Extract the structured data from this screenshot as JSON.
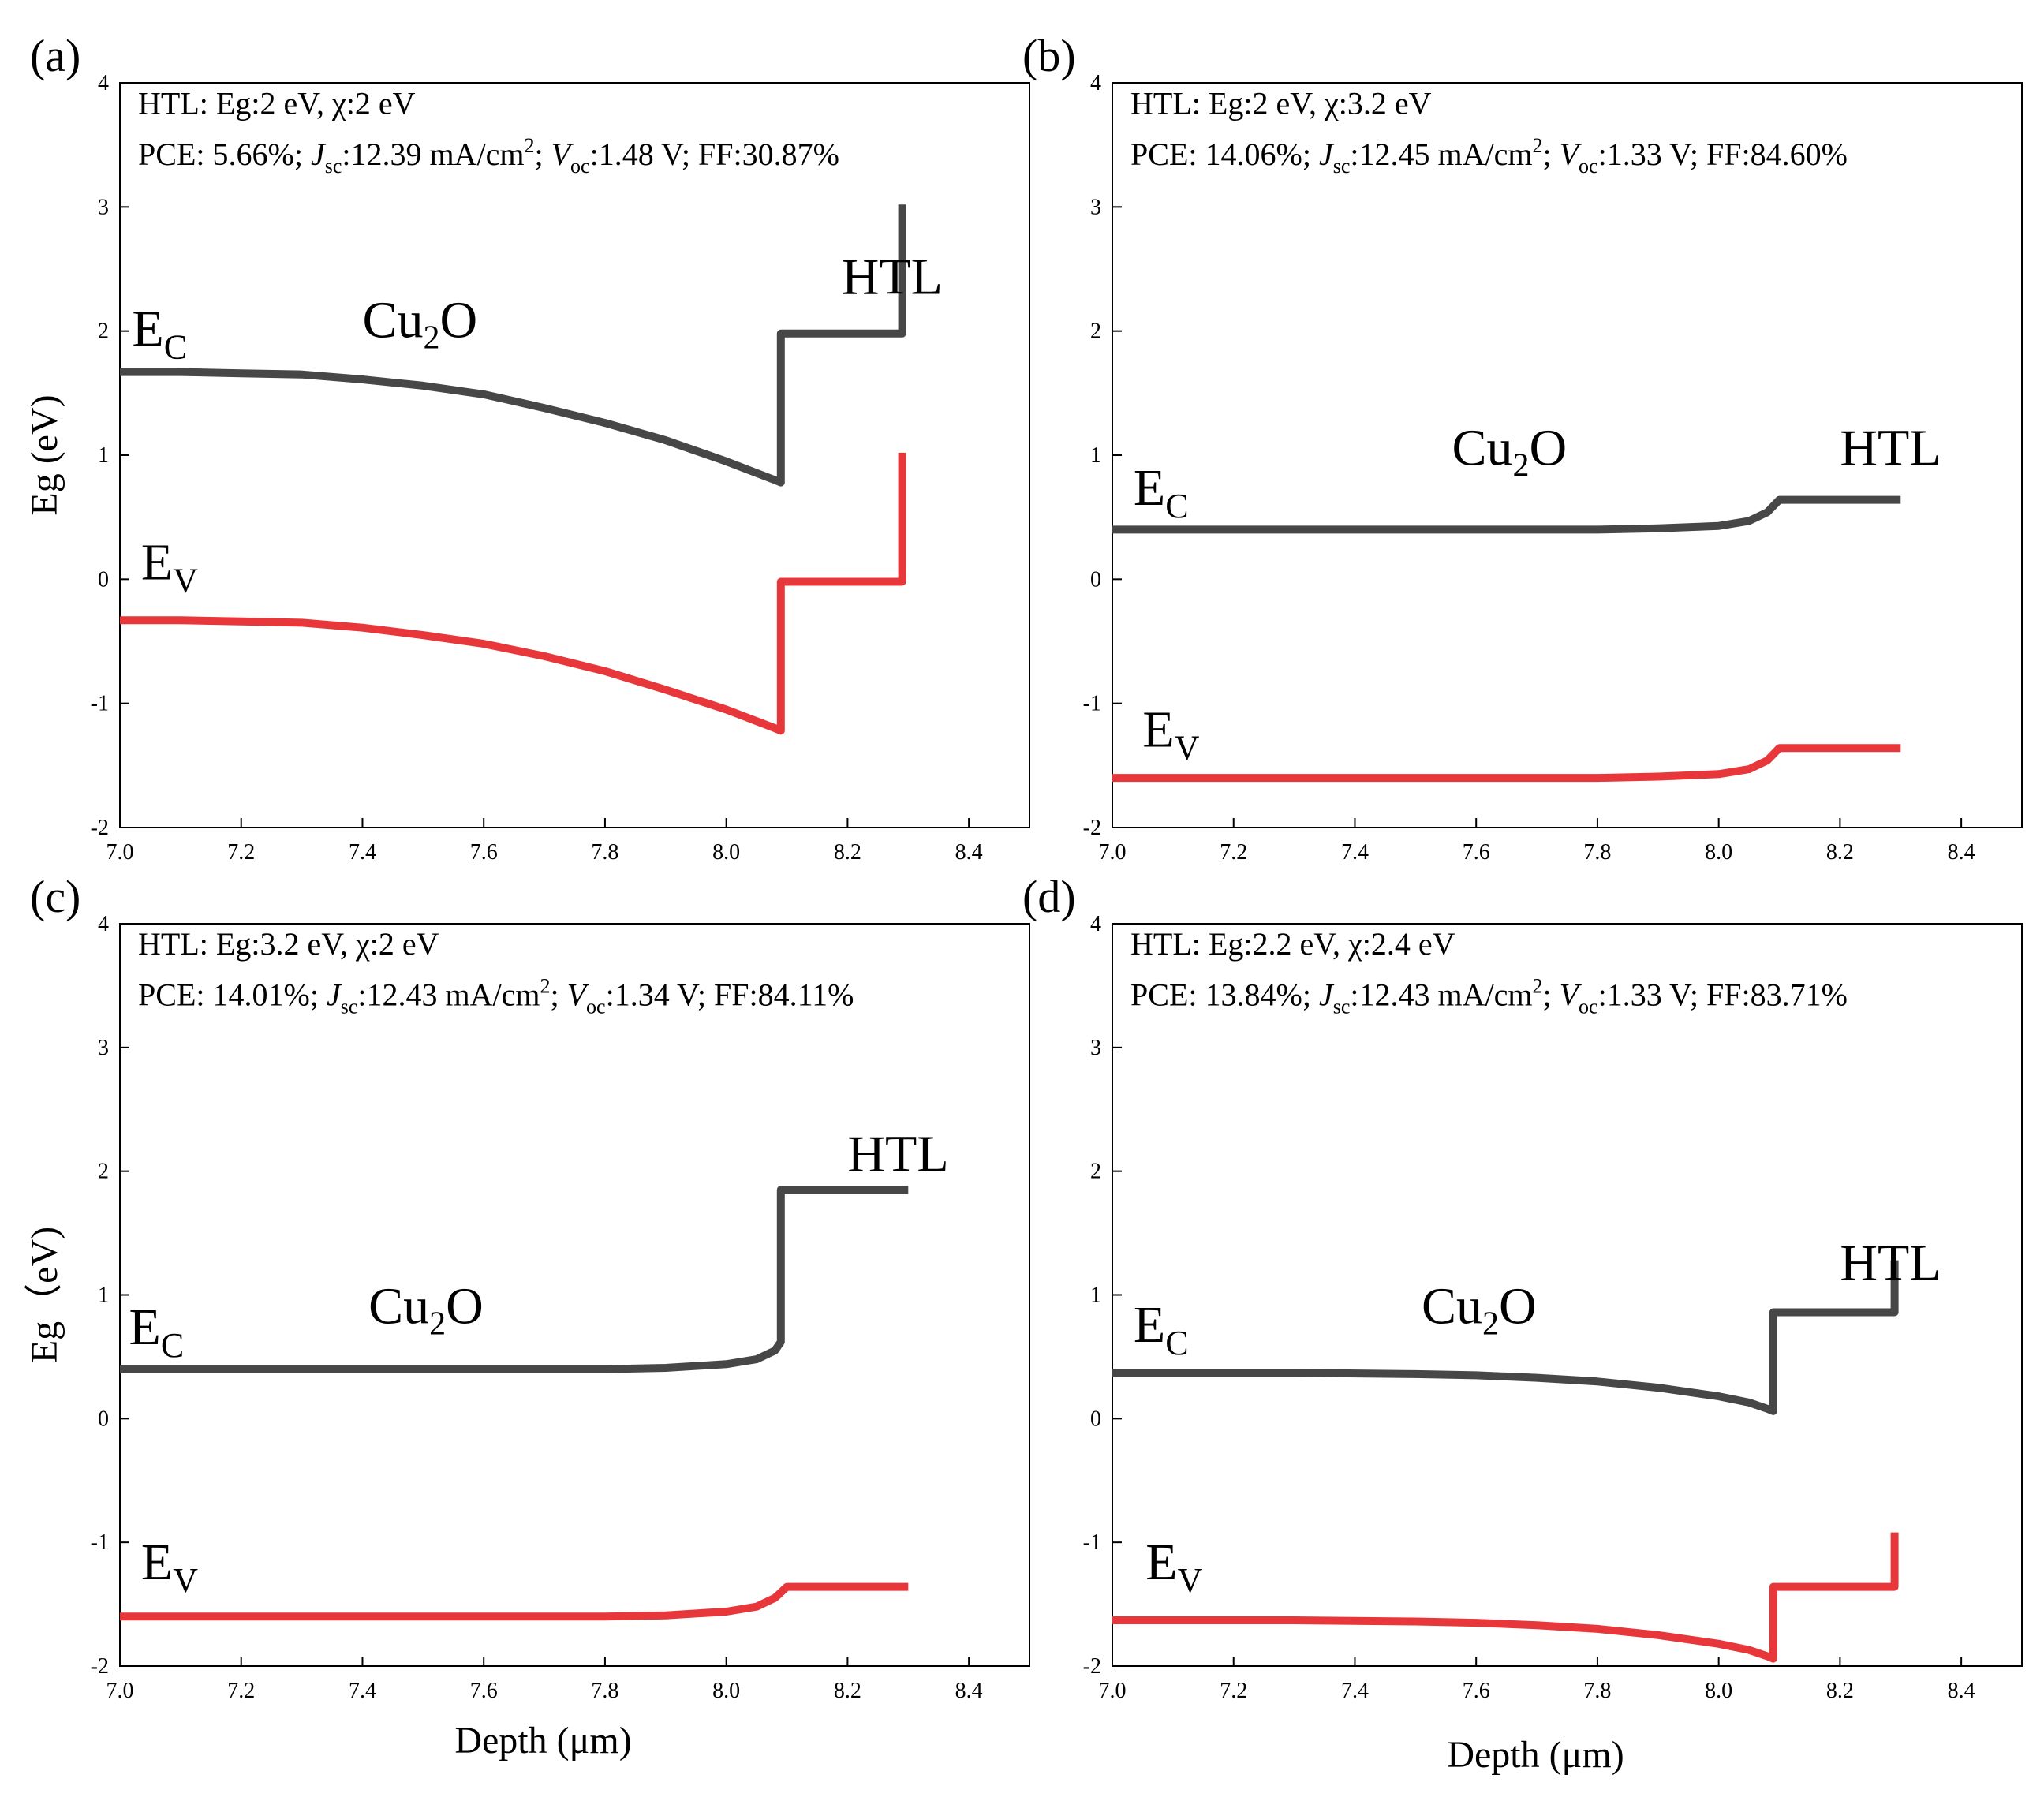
{
  "figure": {
    "panels": [
      {
        "id": "a",
        "label": "(a)",
        "info_line1": "HTL: Eg:2 eV, χ:2 eV",
        "info_line2": {
          "pce": "PCE: 5.66%; ",
          "jsc_sym": "J",
          "jsc_sub": "sc",
          "jsc_val": ":12.39 mA/cm",
          "jsc_sup": "2",
          "voc_pre": "; ",
          "voc_sym": "V",
          "voc_sub": "oc",
          "voc_val": ":1.48 V; FF:30.87%"
        },
        "ylabel": "Eg (eV)",
        "xlabel": "",
        "region_cu2o": {
          "main": "Cu",
          "sub": "2",
          "tail": "O"
        },
        "region_htl": "HTL",
        "ec_label": {
          "main": "E",
          "sub": "C"
        },
        "ev_label": {
          "main": "E",
          "sub": "V"
        }
      },
      {
        "id": "b",
        "label": "(b)",
        "info_line1": "HTL: Eg:2 eV, χ:3.2 eV",
        "info_line2": {
          "pce": "PCE: 14.06%; ",
          "jsc_sym": "J",
          "jsc_sub": "sc",
          "jsc_val": ":12.45 mA/cm",
          "jsc_sup": "2",
          "voc_pre": "; ",
          "voc_sym": "V",
          "voc_sub": "oc",
          "voc_val": ":1.33 V; FF:84.60%"
        },
        "ylabel": "",
        "xlabel": "",
        "region_cu2o": {
          "main": "Cu",
          "sub": "2",
          "tail": "O"
        },
        "region_htl": "HTL",
        "ec_label": {
          "main": "E",
          "sub": "C"
        },
        "ev_label": {
          "main": "E",
          "sub": "V"
        }
      },
      {
        "id": "c",
        "label": "(c)",
        "info_line1": "HTL: Eg:3.2 eV, χ:2 eV",
        "info_line2": {
          "pce": "PCE: 14.01%; ",
          "jsc_sym": "J",
          "jsc_sub": "sc",
          "jsc_val": ":12.43 mA/cm",
          "jsc_sup": "2",
          "voc_pre": "; ",
          "voc_sym": "V",
          "voc_sub": "oc",
          "voc_val": ":1.34 V; FF:84.11%"
        },
        "ylabel": "Eg（eV)",
        "xlabel": "Depth (μm)",
        "region_cu2o": {
          "main": "Cu",
          "sub": "2",
          "tail": "O"
        },
        "region_htl": "HTL",
        "ec_label": {
          "main": "E",
          "sub": "C"
        },
        "ev_label": {
          "main": "E",
          "sub": "V"
        }
      },
      {
        "id": "d",
        "label": "(d)",
        "info_line1": "HTL: Eg:2.2 eV, χ:2.4 eV",
        "info_line2": {
          "pce": "PCE: 13.84%; ",
          "jsc_sym": "J",
          "jsc_sub": "sc",
          "jsc_val": ":12.43 mA/cm",
          "jsc_sup": "2",
          "voc_pre": "; ",
          "voc_sym": "V",
          "voc_sub": "oc",
          "voc_val": ":1.33 V; FF:83.71%"
        },
        "ylabel": "",
        "xlabel": "Depth (μm)",
        "region_cu2o": {
          "main": "Cu",
          "sub": "2",
          "tail": "O"
        },
        "region_htl": "HTL",
        "ec_label": {
          "main": "E",
          "sub": "C"
        },
        "ev_label": {
          "main": "E",
          "sub": "V"
        }
      }
    ]
  },
  "chart_data": [
    {
      "type": "line",
      "panel": "a",
      "title": "",
      "xlabel": "",
      "ylabel": "Eg (eV)",
      "xlim": [
        7.0,
        8.5
      ],
      "ylim": [
        -2,
        4
      ],
      "xticks": [
        "7.0",
        "7.2",
        "7.4",
        "7.6",
        "7.8",
        "8.0",
        "8.2",
        "8.4"
      ],
      "yticks": [
        "-2",
        "-1",
        "0",
        "1",
        "2",
        "3",
        "4"
      ],
      "grid": false,
      "colors": {
        "Ec": "#474747",
        "Ev": "#e8373a"
      },
      "series": [
        {
          "name": "Ec",
          "points": [
            [
              7.0,
              1.67
            ],
            [
              7.1,
              1.67
            ],
            [
              7.2,
              1.66
            ],
            [
              7.3,
              1.65
            ],
            [
              7.4,
              1.61
            ],
            [
              7.5,
              1.56
            ],
            [
              7.6,
              1.49
            ],
            [
              7.7,
              1.38
            ],
            [
              7.8,
              1.26
            ],
            [
              7.9,
              1.12
            ],
            [
              8.0,
              0.95
            ],
            [
              8.08,
              0.8
            ],
            [
              8.09,
              0.78
            ],
            [
              8.09,
              1.98
            ],
            [
              8.29,
              1.98
            ],
            [
              8.29,
              3.02
            ]
          ]
        },
        {
          "name": "Ev",
          "points": [
            [
              7.0,
              -0.33
            ],
            [
              7.1,
              -0.33
            ],
            [
              7.2,
              -0.34
            ],
            [
              7.3,
              -0.35
            ],
            [
              7.4,
              -0.39
            ],
            [
              7.5,
              -0.45
            ],
            [
              7.6,
              -0.52
            ],
            [
              7.7,
              -0.62
            ],
            [
              7.8,
              -0.74
            ],
            [
              7.9,
              -0.89
            ],
            [
              8.0,
              -1.05
            ],
            [
              8.08,
              -1.2
            ],
            [
              8.09,
              -1.22
            ],
            [
              8.09,
              -0.02
            ],
            [
              8.29,
              -0.02
            ],
            [
              8.29,
              1.02
            ]
          ]
        }
      ]
    },
    {
      "type": "line",
      "panel": "b",
      "title": "",
      "xlabel": "",
      "ylabel": "",
      "xlim": [
        7.0,
        8.5
      ],
      "ylim": [
        -2,
        4
      ],
      "xticks": [
        "7.0",
        "7.2",
        "7.4",
        "7.6",
        "7.8",
        "8.0",
        "8.2",
        "8.4"
      ],
      "yticks": [
        "-2",
        "-1",
        "0",
        "1",
        "2",
        "3",
        "4"
      ],
      "grid": false,
      "colors": {
        "Ec": "#474747",
        "Ev": "#e8373a"
      },
      "series": [
        {
          "name": "Ec",
          "points": [
            [
              7.0,
              0.4
            ],
            [
              7.5,
              0.4
            ],
            [
              7.8,
              0.4
            ],
            [
              7.9,
              0.41
            ],
            [
              8.0,
              0.43
            ],
            [
              8.05,
              0.47
            ],
            [
              8.08,
              0.54
            ],
            [
              8.1,
              0.64
            ],
            [
              8.3,
              0.64
            ]
          ]
        },
        {
          "name": "Ev",
          "points": [
            [
              7.0,
              -1.6
            ],
            [
              7.5,
              -1.6
            ],
            [
              7.8,
              -1.6
            ],
            [
              7.9,
              -1.59
            ],
            [
              8.0,
              -1.57
            ],
            [
              8.05,
              -1.53
            ],
            [
              8.08,
              -1.46
            ],
            [
              8.1,
              -1.36
            ],
            [
              8.3,
              -1.36
            ]
          ]
        }
      ]
    },
    {
      "type": "line",
      "panel": "c",
      "title": "",
      "xlabel": "Depth (μm)",
      "ylabel": "Eg（eV)",
      "xlim": [
        7.0,
        8.5
      ],
      "ylim": [
        -2,
        4
      ],
      "xticks": [
        "7.0",
        "7.2",
        "7.4",
        "7.6",
        "7.8",
        "8.0",
        "8.2",
        "8.4"
      ],
      "yticks": [
        "-2",
        "-1",
        "0",
        "1",
        "2",
        "3",
        "4"
      ],
      "grid": false,
      "colors": {
        "Ec": "#474747",
        "Ev": "#e8373a"
      },
      "series": [
        {
          "name": "Ec",
          "points": [
            [
              7.0,
              0.4
            ],
            [
              7.5,
              0.4
            ],
            [
              7.8,
              0.4
            ],
            [
              7.9,
              0.41
            ],
            [
              8.0,
              0.44
            ],
            [
              8.05,
              0.48
            ],
            [
              8.08,
              0.55
            ],
            [
              8.09,
              0.62
            ],
            [
              8.09,
              1.85
            ],
            [
              8.3,
              1.85
            ]
          ]
        },
        {
          "name": "Ev",
          "points": [
            [
              7.0,
              -1.6
            ],
            [
              7.5,
              -1.6
            ],
            [
              7.8,
              -1.6
            ],
            [
              7.9,
              -1.59
            ],
            [
              8.0,
              -1.56
            ],
            [
              8.05,
              -1.52
            ],
            [
              8.08,
              -1.45
            ],
            [
              8.1,
              -1.36
            ],
            [
              8.3,
              -1.36
            ]
          ]
        }
      ]
    },
    {
      "type": "line",
      "panel": "d",
      "title": "",
      "xlabel": "Depth (μm)",
      "ylabel": "",
      "xlim": [
        7.0,
        8.5
      ],
      "ylim": [
        -2,
        4
      ],
      "xticks": [
        "7.0",
        "7.2",
        "7.4",
        "7.6",
        "7.8",
        "8.0",
        "8.2",
        "8.4"
      ],
      "yticks": [
        "-2",
        "-1",
        "0",
        "1",
        "2",
        "3",
        "4"
      ],
      "grid": false,
      "colors": {
        "Ec": "#474747",
        "Ev": "#e8373a"
      },
      "series": [
        {
          "name": "Ec",
          "points": [
            [
              7.0,
              0.37
            ],
            [
              7.3,
              0.37
            ],
            [
              7.5,
              0.36
            ],
            [
              7.6,
              0.35
            ],
            [
              7.7,
              0.33
            ],
            [
              7.8,
              0.3
            ],
            [
              7.9,
              0.25
            ],
            [
              8.0,
              0.18
            ],
            [
              8.05,
              0.13
            ],
            [
              8.08,
              0.08
            ],
            [
              8.09,
              0.06
            ],
            [
              8.09,
              0.86
            ],
            [
              8.29,
              0.86
            ],
            [
              8.29,
              1.28
            ]
          ]
        },
        {
          "name": "Ev",
          "points": [
            [
              7.0,
              -1.63
            ],
            [
              7.3,
              -1.63
            ],
            [
              7.5,
              -1.64
            ],
            [
              7.6,
              -1.65
            ],
            [
              7.7,
              -1.67
            ],
            [
              7.8,
              -1.7
            ],
            [
              7.9,
              -1.75
            ],
            [
              8.0,
              -1.82
            ],
            [
              8.05,
              -1.87
            ],
            [
              8.08,
              -1.92
            ],
            [
              8.09,
              -1.94
            ],
            [
              8.09,
              -1.36
            ],
            [
              8.29,
              -1.36
            ],
            [
              8.29,
              -0.92
            ]
          ]
        }
      ]
    }
  ]
}
